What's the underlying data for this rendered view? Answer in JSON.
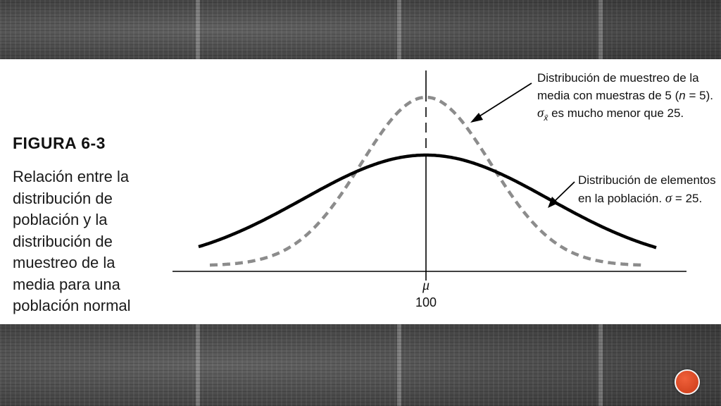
{
  "figure": {
    "title": "FIGURA 6-3",
    "caption": "Relación entre la\ndistribución de\npoblación y la\ndistribución de\nmuestreo de la\nmedia para una\npoblación normal"
  },
  "diagram": {
    "axis_mu_label": "μ",
    "axis_value_label": "100",
    "sampling_annotation": {
      "line1": "Distribución de muestreo de la",
      "line2_a": "media con muestras de 5 (",
      "line2_n": "n",
      "line2_b": " = 5).",
      "line3_sigma": "σ",
      "line3_sub": "x̄",
      "line3_rest": " es mucho menor que 25."
    },
    "population_annotation": {
      "line1": "Distribución de elementos",
      "line2_a": "en la población. ",
      "line2_sigma": "σ",
      "line2_b": " = 25."
    },
    "population_sigma": 25,
    "sample_size": 5,
    "mean": 100,
    "colors": {
      "population_curve": "#000000",
      "sampling_curve": "#8c8c8c",
      "nav_button": "#e04a26"
    }
  },
  "nav": {
    "icon": "circle-button-icon"
  }
}
